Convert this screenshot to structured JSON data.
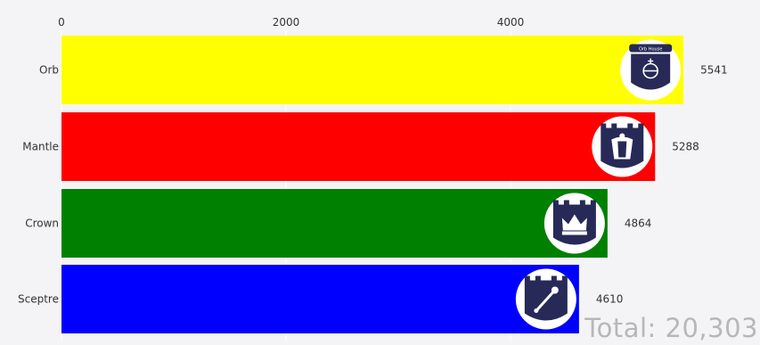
{
  "chart_data": {
    "type": "bar",
    "orientation": "horizontal",
    "categories": [
      "Orb",
      "Mantle",
      "Crown",
      "Sceptre"
    ],
    "values": [
      5541,
      5288,
      4864,
      4610
    ],
    "colors": [
      "#ffff00",
      "#ff0000",
      "#008000",
      "#0000ff"
    ],
    "icons": [
      "orb-house-badge-icon",
      "mantle-house-badge-icon",
      "crown-house-badge-icon",
      "sceptre-house-badge-icon"
    ],
    "badge_text": [
      "Orb House",
      "",
      "",
      ""
    ],
    "xlim": [
      0,
      5541
    ],
    "x_ticks": [
      0,
      2000,
      4000
    ],
    "x_tick_labels": [
      "0",
      "2000",
      "4000"
    ],
    "axis_position": "top",
    "grid": true,
    "value_labels": [
      "5541",
      "5288",
      "4864",
      "4610"
    ],
    "total_label": "Total: 20,303"
  }
}
